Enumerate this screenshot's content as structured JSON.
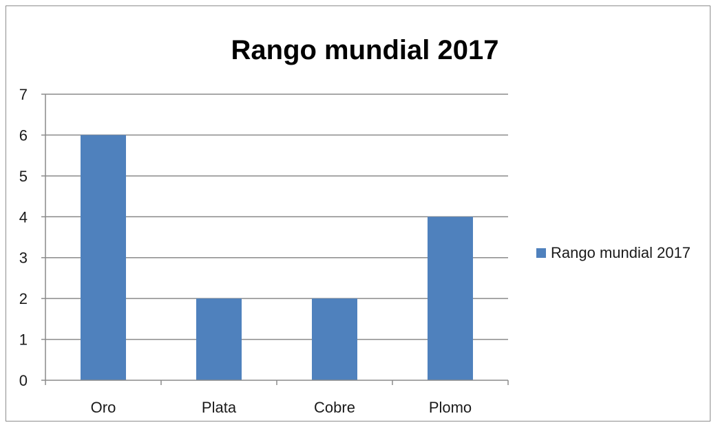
{
  "chart_data": {
    "type": "bar",
    "title": "Rango mundial 2017",
    "categories": [
      "Oro",
      "Plata",
      "Cobre",
      "Plomo"
    ],
    "series": [
      {
        "name": "Rango mundial 2017",
        "values": [
          6,
          2,
          2,
          4
        ],
        "color": "#4f81bd"
      }
    ],
    "xlabel": "",
    "ylabel": "",
    "ylim": [
      0,
      7
    ],
    "yticks": [
      "0",
      "1",
      "2",
      "3",
      "4",
      "5",
      "6",
      "7"
    ],
    "grid": true,
    "legend_position": "right"
  }
}
